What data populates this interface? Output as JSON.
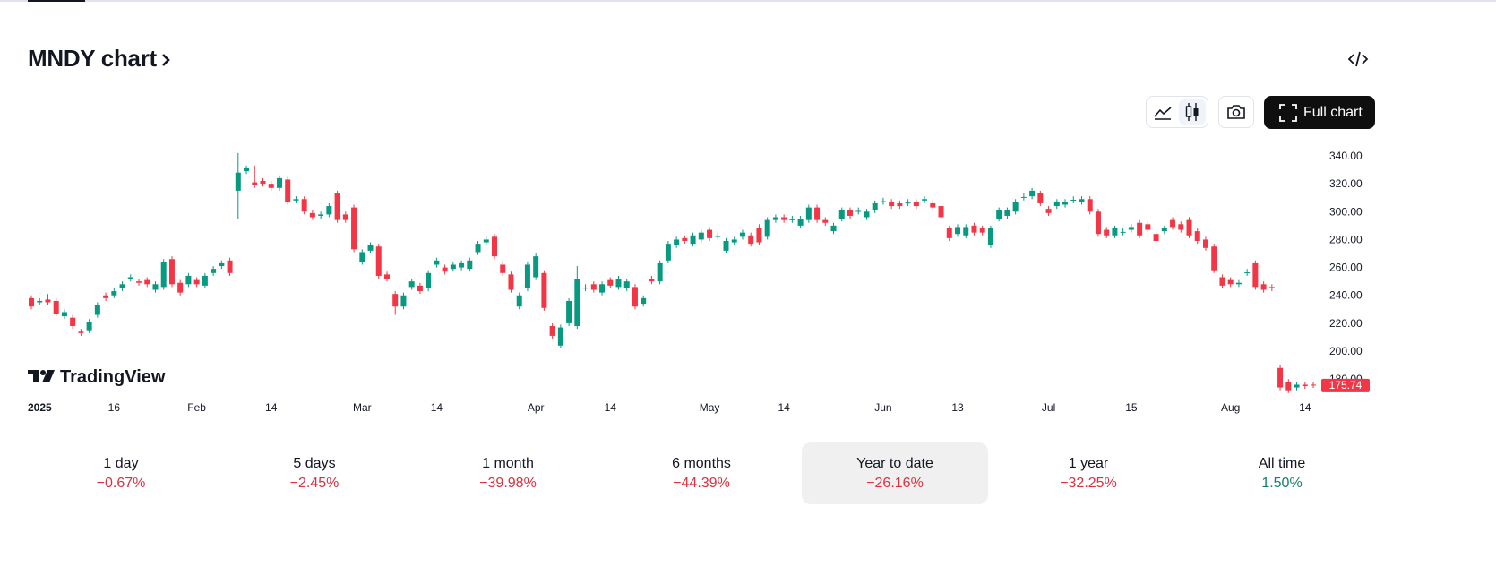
{
  "header": {
    "title": "MNDY chart"
  },
  "toolbar": {
    "full_chart": "Full chart"
  },
  "logo": "TradingView",
  "chart_data": {
    "type": "candlestick",
    "up_color": "#089981",
    "down_color": "#f23645",
    "ylim": [
      168,
      350
    ],
    "yticks": [
      {
        "value": 180,
        "label": "180.00"
      },
      {
        "value": 200,
        "label": "200.00"
      },
      {
        "value": 220,
        "label": "220.00"
      },
      {
        "value": 240,
        "label": "240.00"
      },
      {
        "value": 260,
        "label": "260.00"
      },
      {
        "value": 280,
        "label": "280.00"
      },
      {
        "value": 300,
        "label": "300.00"
      },
      {
        "value": 320,
        "label": "320.00"
      },
      {
        "value": 340,
        "label": "340.00"
      }
    ],
    "categories": [
      "2025",
      null,
      null,
      null,
      null,
      null,
      null,
      null,
      null,
      null,
      "16",
      null,
      null,
      null,
      null,
      null,
      null,
      null,
      null,
      null,
      "Feb",
      null,
      null,
      null,
      null,
      null,
      null,
      null,
      null,
      "14",
      null,
      null,
      null,
      null,
      null,
      null,
      null,
      null,
      null,
      null,
      "Mar",
      null,
      null,
      null,
      null,
      null,
      null,
      null,
      null,
      "14",
      null,
      null,
      null,
      null,
      null,
      null,
      null,
      null,
      null,
      null,
      null,
      "Apr",
      null,
      null,
      null,
      null,
      null,
      null,
      null,
      null,
      "14",
      null,
      null,
      null,
      null,
      null,
      null,
      null,
      null,
      null,
      null,
      null,
      "May",
      null,
      null,
      null,
      null,
      null,
      null,
      null,
      null,
      "14",
      null,
      null,
      null,
      null,
      null,
      null,
      null,
      null,
      null,
      null,
      null,
      "Jun",
      null,
      null,
      null,
      null,
      null,
      null,
      null,
      null,
      "13",
      null,
      null,
      null,
      null,
      null,
      null,
      null,
      null,
      null,
      null,
      "Jul",
      null,
      null,
      null,
      null,
      null,
      null,
      null,
      null,
      null,
      "15",
      null,
      null,
      null,
      null,
      null,
      null,
      null,
      null,
      null,
      null,
      null,
      "Aug",
      null,
      null,
      null,
      null,
      null,
      null,
      null,
      null,
      "14",
      null
    ],
    "open": [
      238,
      235,
      237,
      236,
      225,
      224,
      214,
      215,
      226,
      240,
      240,
      245,
      252,
      250,
      251,
      244,
      246,
      266,
      249,
      248,
      251,
      247,
      256,
      261,
      265,
      315,
      329,
      321,
      322,
      320,
      317,
      323,
      308,
      309,
      299,
      297,
      298,
      313,
      298,
      303,
      264,
      272,
      275,
      255,
      241,
      232,
      246,
      247,
      245,
      262,
      260,
      259,
      260,
      259,
      271,
      278,
      282,
      262,
      255,
      232,
      245,
      253,
      256,
      218,
      204,
      220,
      218,
      245,
      248,
      242,
      251,
      246,
      245,
      246,
      234,
      252,
      250,
      265,
      276,
      281,
      277,
      280,
      287,
      282,
      272,
      278,
      282,
      283,
      288,
      282,
      294,
      296,
      294,
      290,
      294,
      303,
      294,
      286,
      295,
      301,
      300,
      296,
      301,
      307,
      307,
      306,
      306,
      307,
      308,
      306,
      304,
      288,
      284,
      283,
      290,
      288,
      276,
      295,
      297,
      300,
      310,
      311,
      313,
      302,
      304,
      305,
      308,
      307,
      309,
      300,
      287,
      283,
      285,
      287,
      292,
      291,
      284,
      286,
      294,
      291,
      294,
      286,
      280,
      275,
      253,
      251,
      248,
      256,
      263,
      248,
      246,
      188,
      178,
      174,
      176,
      176
    ],
    "high": [
      240,
      238,
      241,
      238,
      230,
      226,
      216,
      223,
      235,
      242,
      245,
      250,
      255,
      252,
      253,
      250,
      266,
      268,
      251,
      256,
      253,
      256,
      261,
      265,
      267,
      342,
      333,
      333,
      324,
      322,
      326,
      325,
      311,
      311,
      301,
      300,
      306,
      315,
      300,
      305,
      273,
      278,
      277,
      257,
      243,
      242,
      252,
      249,
      258,
      267,
      262,
      264,
      265,
      267,
      279,
      282,
      284,
      264,
      257,
      242,
      264,
      270,
      258,
      220,
      219,
      238,
      261,
      248,
      250,
      250,
      253,
      254,
      252,
      248,
      240,
      254,
      265,
      279,
      282,
      283,
      285,
      287,
      289,
      285,
      281,
      282,
      287,
      285,
      291,
      296,
      298,
      298,
      297,
      297,
      305,
      305,
      296,
      292,
      303,
      303,
      303,
      302,
      308,
      310,
      309,
      308,
      309,
      309,
      311,
      308,
      306,
      290,
      291,
      291,
      292,
      290,
      290,
      303,
      303,
      309,
      313,
      317,
      315,
      304,
      309,
      309,
      311,
      311,
      311,
      302,
      289,
      290,
      288,
      291,
      294,
      293,
      286,
      290,
      296,
      293,
      296,
      288,
      282,
      277,
      255,
      253,
      251,
      259,
      265,
      250,
      248,
      190,
      180,
      178,
      178,
      178
    ],
    "low": [
      230,
      233,
      233,
      225,
      223,
      216,
      211,
      213,
      224,
      236,
      238,
      243,
      250,
      247,
      246,
      242,
      244,
      246,
      240,
      246,
      246,
      245,
      254,
      259,
      254,
      295,
      327,
      317,
      318,
      315,
      315,
      305,
      306,
      298,
      294,
      295,
      296,
      292,
      292,
      271,
      262,
      270,
      252,
      250,
      226,
      230,
      244,
      241,
      243,
      260,
      255,
      257,
      258,
      257,
      269,
      276,
      266,
      254,
      242,
      230,
      243,
      251,
      229,
      209,
      202,
      218,
      216,
      243,
      242,
      240,
      245,
      244,
      243,
      230,
      232,
      248,
      248,
      263,
      274,
      277,
      275,
      278,
      279,
      280,
      270,
      276,
      280,
      275,
      276,
      280,
      292,
      292,
      292,
      288,
      292,
      292,
      290,
      284,
      293,
      295,
      298,
      294,
      299,
      305,
      302,
      302,
      304,
      302,
      306,
      301,
      294,
      279,
      282,
      281,
      283,
      283,
      274,
      293,
      295,
      298,
      308,
      309,
      304,
      297,
      302,
      303,
      306,
      305,
      298,
      282,
      281,
      281,
      283,
      285,
      281,
      285,
      277,
      284,
      287,
      285,
      281,
      277,
      272,
      256,
      245,
      246,
      246,
      254,
      244,
      242,
      243,
      172,
      170,
      172,
      173,
      173.74
    ],
    "close": [
      232,
      236,
      235,
      227,
      228,
      218,
      213,
      221,
      233,
      238,
      243,
      248,
      253,
      249,
      248,
      248,
      264,
      248,
      242,
      254,
      248,
      254,
      259,
      263,
      256,
      328,
      331,
      319,
      320,
      317,
      324,
      307,
      309,
      300,
      296,
      298,
      304,
      294,
      294,
      273,
      271,
      276,
      254,
      252,
      232,
      240,
      250,
      243,
      256,
      265,
      257,
      262,
      263,
      265,
      277,
      280,
      268,
      256,
      244,
      240,
      262,
      268,
      231,
      211,
      217,
      236,
      252,
      245.5,
      244,
      248,
      247,
      252,
      250,
      232,
      238,
      250,
      263,
      277,
      280,
      279,
      283,
      285,
      281,
      282.5,
      279,
      280,
      285,
      277,
      278,
      294,
      296,
      294,
      294.5,
      295,
      303,
      294,
      292,
      290,
      301,
      297,
      300.5,
      300,
      306,
      307.5,
      304,
      304,
      306.5,
      304,
      309,
      303,
      296,
      281,
      289,
      289,
      285,
      285,
      288,
      301,
      301,
      307,
      310.5,
      315,
      306,
      299,
      307,
      307,
      308.5,
      309,
      300,
      284,
      283,
      288,
      285.5,
      289,
      283,
      287,
      279,
      288,
      289,
      287,
      283,
      279,
      274,
      258,
      247,
      248,
      249,
      256.5,
      246,
      244,
      245,
      174,
      172,
      176,
      175,
      175.74
    ]
  },
  "periods": [
    {
      "label": "1 day",
      "change": "−0.67%"
    },
    {
      "label": "5 days",
      "change": "−2.45%"
    },
    {
      "label": "1 month",
      "change": "−39.98%"
    },
    {
      "label": "6 months",
      "change": "−44.39%"
    },
    {
      "label": "Year to date",
      "change": "−26.16%"
    },
    {
      "label": "1 year",
      "change": "−32.25%"
    },
    {
      "label": "All time",
      "change": "1.50%"
    }
  ]
}
